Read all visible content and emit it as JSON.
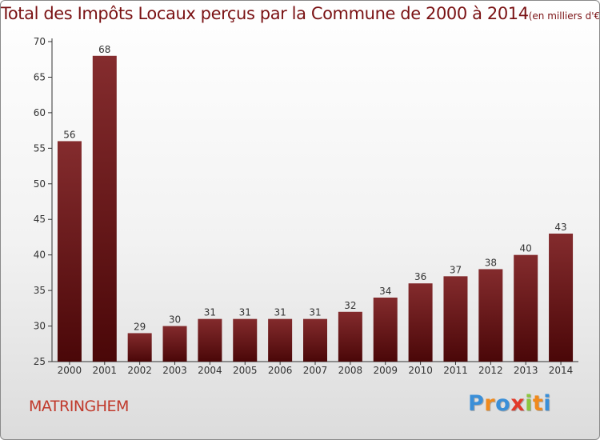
{
  "chart_data": {
    "type": "bar",
    "title": "Total des Impôts Locaux perçus par la Commune de 2000 à 2014",
    "title_unit": "(en milliers d'€)",
    "categories": [
      "2000",
      "2001",
      "2002",
      "2003",
      "2004",
      "2005",
      "2006",
      "2007",
      "2008",
      "2009",
      "2010",
      "2011",
      "2012",
      "2013",
      "2014"
    ],
    "values": [
      56,
      68,
      29,
      30,
      31,
      31,
      31,
      31,
      32,
      34,
      36,
      37,
      38,
      40,
      43
    ],
    "ylim": [
      25,
      70
    ],
    "yticks": [
      25,
      30,
      35,
      40,
      45,
      50,
      55,
      60,
      65,
      70
    ],
    "grid": false,
    "bar_color": "#7a1a1c",
    "bar_color_dark": "#4a0708"
  },
  "commune": "MATRINGHEM",
  "logo": {
    "letters": [
      "P",
      "r",
      "o",
      "x",
      "i",
      "t",
      "i"
    ],
    "colors": [
      "#3a8fd8",
      "#f08a1c",
      "#3a8fd8",
      "#e23a2a",
      "#8cc63f",
      "#f08a1c",
      "#3a8fd8"
    ]
  }
}
